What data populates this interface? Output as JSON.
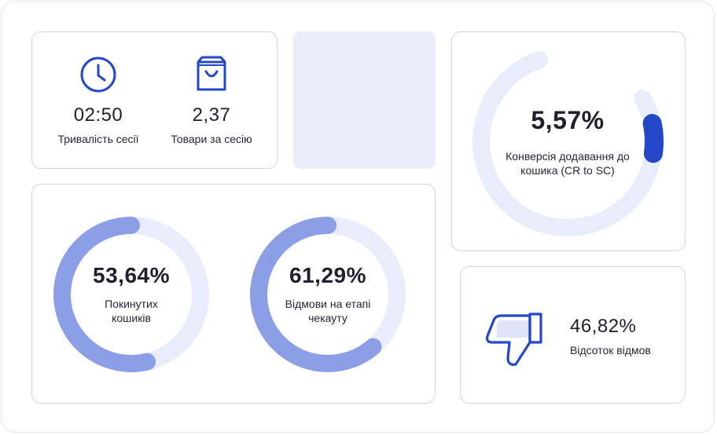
{
  "session_card": {
    "duration": {
      "icon": "clock-icon",
      "value": "02:50",
      "label": "Тривалість сесії"
    },
    "items": {
      "icon": "shopping-bag-icon",
      "value": "2,37",
      "label": "Товари за сесію"
    }
  },
  "rings": [
    {
      "value": "53,64%",
      "label_line1": "Покинутих",
      "label_line2": "кошиків",
      "fraction": 0.5364
    },
    {
      "value": "61,29%",
      "label_line1": "Відмови на етапі",
      "label_line2": "чекауту",
      "fraction": 0.6129
    }
  ],
  "cr_card": {
    "value": "5,57%",
    "label_line1": "Конверсія додавання до",
    "label_line2": "кошика (CR to SC)",
    "fraction": 0.0557
  },
  "bounce_card": {
    "icon": "thumbs-down-icon",
    "value": "46,82%",
    "label": "Відсоток відмов"
  },
  "colors": {
    "accent": "#2447c7",
    "ring_fill": "#8c9fe6",
    "ring_track": "#e9ecfb",
    "border": "#cfd2e6"
  }
}
